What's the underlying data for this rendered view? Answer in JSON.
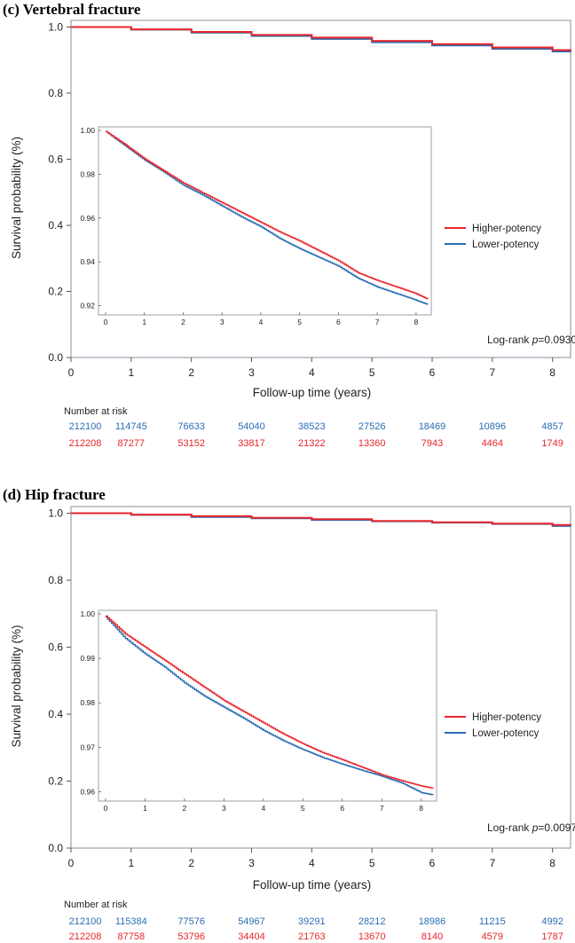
{
  "colors": {
    "higher": "#e8262b",
    "lower": "#2a6db3",
    "frame": "#9aa1ad"
  },
  "chart_data": [
    {
      "type": "line",
      "subtype": "kaplan-meier",
      "title": "(c)  Vertebral fracture",
      "xlabel": "Follow-up time (years)",
      "ylabel": "Survival probability (%)",
      "xlim": [
        0,
        8.3
      ],
      "ylim": [
        0,
        1.02
      ],
      "xticks": [
        "0",
        "1",
        "2",
        "3",
        "4",
        "5",
        "6",
        "7",
        "8"
      ],
      "yticks": [
        "0.0",
        "0.2",
        "0.4",
        "0.6",
        "0.8",
        "1.0"
      ],
      "legend_position": "right",
      "annotation_prefix": "Log-rank ",
      "annotation_p": "p",
      "annotation_value": "=0.0930",
      "series": [
        {
          "name": "Higher-potency",
          "color": "#e8262b",
          "x": [
            0,
            1,
            2,
            3,
            4,
            5,
            6,
            7,
            8,
            8.3
          ],
          "y": [
            1.0,
            0.993,
            0.985,
            0.976,
            0.968,
            0.958,
            0.948,
            0.938,
            0.93,
            0.928
          ]
        },
        {
          "name": "Lower-potency",
          "color": "#2a6db3",
          "x": [
            0,
            1,
            2,
            3,
            4,
            5,
            6,
            7,
            8,
            8.3
          ],
          "y": [
            1.0,
            0.992,
            0.983,
            0.973,
            0.964,
            0.954,
            0.944,
            0.934,
            0.926,
            0.924
          ]
        }
      ],
      "inset": {
        "xlim": [
          0,
          8.3
        ],
        "ylim": [
          0.919,
          1.0
        ],
        "xticks": [
          "0",
          "1",
          "2",
          "3",
          "4",
          "5",
          "6",
          "7",
          "8"
        ],
        "yticks": [
          "1.00",
          "0.98",
          "0.96",
          "0.94",
          "0.92"
        ],
        "ytick_values": [
          1.0,
          0.98,
          0.96,
          0.94,
          0.92
        ],
        "series": [
          {
            "name": "Higher-potency",
            "x": [
              0,
              0.5,
              1,
              1.5,
              2,
              2.5,
              3,
              3.5,
              4,
              4.5,
              5,
              5.5,
              6,
              6.5,
              7,
              7.5,
              8,
              8.3
            ],
            "y": [
              0.9995,
              0.9935,
              0.987,
              0.9815,
              0.976,
              0.9715,
              0.967,
              0.9625,
              0.958,
              0.9535,
              0.9495,
              0.945,
              0.9405,
              0.935,
              0.9315,
              0.9285,
              0.9255,
              0.923
            ]
          },
          {
            "name": "Lower-potency",
            "x": [
              0,
              0.5,
              1,
              1.5,
              2,
              2.5,
              3,
              3.5,
              4,
              4.5,
              5,
              5.5,
              6,
              6.5,
              7,
              7.5,
              8,
              8.3
            ],
            "y": [
              0.9995,
              0.993,
              0.9865,
              0.981,
              0.975,
              0.9705,
              0.9655,
              0.9605,
              0.956,
              0.9505,
              0.946,
              0.942,
              0.938,
              0.9325,
              0.9285,
              0.9255,
              0.9225,
              0.9205
            ]
          }
        ]
      },
      "risk_table": {
        "header": "Number at risk",
        "rows": [
          {
            "name": "Lower-potency",
            "color": "#2a6db3",
            "values": [
              "212100",
              "114745",
              "76633",
              "54040",
              "38523",
              "27526",
              "18469",
              "10896",
              "4857"
            ]
          },
          {
            "name": "Higher-potency",
            "color": "#e8262b",
            "values": [
              "212208",
              "87277",
              "53152",
              "33817",
              "21322",
              "13360",
              "7943",
              "4464",
              "1749"
            ]
          }
        ]
      }
    },
    {
      "type": "line",
      "subtype": "kaplan-meier",
      "title": "(d)  Hip fracture",
      "xlabel": "Follow-up time (years)",
      "ylabel": "Survival probability (%)",
      "xlim": [
        0,
        8.3
      ],
      "ylim": [
        0,
        1.02
      ],
      "xticks": [
        "0",
        "1",
        "2",
        "3",
        "4",
        "5",
        "6",
        "7",
        "8"
      ],
      "yticks": [
        "0.0",
        "0.2",
        "0.4",
        "0.6",
        "0.8",
        "1.0"
      ],
      "legend_position": "right",
      "annotation_prefix": "Log-rank ",
      "annotation_p": "p",
      "annotation_value": "=0.0097",
      "series": [
        {
          "name": "Higher-potency",
          "color": "#e8262b",
          "x": [
            0,
            1,
            2,
            3,
            4,
            5,
            6,
            7,
            8,
            8.3
          ],
          "y": [
            1.0,
            0.996,
            0.991,
            0.986,
            0.982,
            0.977,
            0.973,
            0.969,
            0.965,
            0.964
          ]
        },
        {
          "name": "Lower-potency",
          "color": "#2a6db3",
          "x": [
            0,
            1,
            2,
            3,
            4,
            5,
            6,
            7,
            8,
            8.3
          ],
          "y": [
            1.0,
            0.995,
            0.989,
            0.985,
            0.98,
            0.976,
            0.972,
            0.968,
            0.962,
            0.961
          ]
        }
      ],
      "inset": {
        "xlim": [
          0,
          8.3
        ],
        "ylim": [
          0.9595,
          1.0
        ],
        "xticks": [
          "0",
          "1",
          "2",
          "3",
          "4",
          "5",
          "6",
          "7",
          "8"
        ],
        "yticks": [
          "1.00",
          "0.99",
          "0.98",
          "0.97",
          "0.96"
        ],
        "ytick_values": [
          1.0,
          0.99,
          0.98,
          0.97,
          0.96
        ],
        "series": [
          {
            "name": "Higher-potency",
            "x": [
              0,
              0.5,
              1,
              1.5,
              2,
              2.5,
              3,
              3.5,
              4,
              4.5,
              5,
              5.5,
              6,
              6.5,
              7,
              7.5,
              8,
              8.3
            ],
            "y": [
              0.9995,
              0.9955,
              0.9925,
              0.9895,
              0.9865,
              0.9835,
              0.9805,
              0.978,
              0.9755,
              0.973,
              0.9708,
              0.9688,
              0.9672,
              0.9655,
              0.9638,
              0.9625,
              0.9613,
              0.9608
            ]
          },
          {
            "name": "Lower-potency",
            "x": [
              0,
              0.5,
              1,
              1.5,
              2,
              2.5,
              3,
              3.5,
              4,
              4.5,
              5,
              5.5,
              6,
              6.5,
              7,
              7.5,
              8,
              8.3
            ],
            "y": [
              0.9993,
              0.9945,
              0.991,
              0.988,
              0.9845,
              0.9815,
              0.979,
              0.9765,
              0.9738,
              0.9715,
              0.9695,
              0.9677,
              0.9662,
              0.9648,
              0.9635,
              0.962,
              0.9598,
              0.9593
            ]
          }
        ]
      },
      "risk_table": {
        "header": "Number at risk",
        "rows": [
          {
            "name": "Lower-potency",
            "color": "#2a6db3",
            "values": [
              "212100",
              "115384",
              "77576",
              "54967",
              "39291",
              "28212",
              "18986",
              "11215",
              "4992"
            ]
          },
          {
            "name": "Higher-potency",
            "color": "#e8262b",
            "values": [
              "212208",
              "87758",
              "53796",
              "34404",
              "21763",
              "13670",
              "8140",
              "4579",
              "1787"
            ]
          }
        ]
      }
    }
  ]
}
